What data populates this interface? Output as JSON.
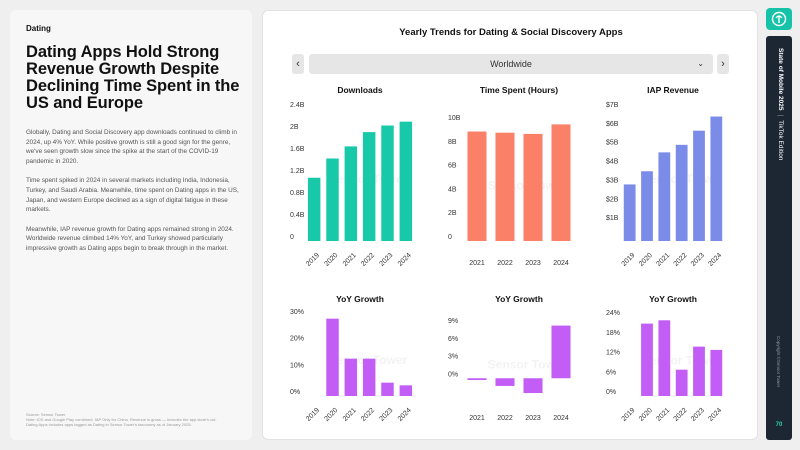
{
  "left": {
    "section_tag": "Dating",
    "headline": "Dating Apps Hold Strong Revenue Growth Despite Declining Time Spent in the US and Europe",
    "paragraphs": [
      "Globally, Dating and Social Discovery app downloads continued to climb in 2024, up 4% YoY. While positive growth is still a good sign for the genre, we've seen growth slow since the spike at the start of the COVID-19 pandemic in 2020.",
      "Time spent spiked in 2024 in several markets including India, Indonesia, Turkey, and Saudi Arabia. Meanwhile, time spent on Dating apps in the US, Japan, and western Europe declined as a sign of digital fatigue in these markets.",
      "Meanwhile, IAP revenue growth for Dating apps remained strong in 2024. Worldwide revenue climbed 14% YoY, and Turkey showed particularly impressive growth as Dating apps begin to break through in the market."
    ],
    "footnote": [
      "Source: Sensor Tower",
      "Note: iOS and Google Play combined. IAP Only for China. Revenue is gross — includes the app store's cut.",
      "Dating Apps includes apps tagged as Dating in Sensor Tower's taxonomy as of January 2025."
    ]
  },
  "right": {
    "title": "Yearly Trends for Dating & Social Discovery Apps",
    "region": "Worldwide",
    "prev_glyph": "‹",
    "next_glyph": "›",
    "chevron_glyph": "⌄"
  },
  "sidebar": {
    "title_bold": "State of Mobile 2025",
    "divider": "|",
    "edition": "TikTok Edition",
    "copyright": "Copyright ©Sensor Tower",
    "page": "70"
  },
  "watermark": "Sensor Tower",
  "colors": {
    "downloads": "#17c9a8",
    "time_spent": "#fb8068",
    "revenue": "#7b8ce8",
    "growth": "#c25ef5",
    "axis_text": "#333333"
  },
  "chart_data": [
    {
      "id": "downloads",
      "type": "bar",
      "title": "Downloads",
      "categories": [
        "2019",
        "2020",
        "2021",
        "2022",
        "2023",
        "2024"
      ],
      "values": [
        1.15,
        1.5,
        1.72,
        1.98,
        2.1,
        2.17
      ],
      "ylim": [
        0,
        2.4
      ],
      "yticks": [
        0,
        0.4,
        0.8,
        1.2,
        1.6,
        2.0,
        2.4
      ],
      "ytick_labels": [
        "0",
        "0.4B",
        "0.8B",
        "1.2B",
        "1.6B",
        "2B",
        "2.4B"
      ],
      "rotate_x": true
    },
    {
      "id": "time_spent",
      "type": "bar",
      "title": "Time Spent (Hours)",
      "categories": [
        "2021",
        "2022",
        "2023",
        "2024"
      ],
      "values": [
        9.2,
        9.1,
        9.0,
        9.8
      ],
      "ylim": [
        0,
        10
      ],
      "yticks": [
        0,
        2,
        4,
        6,
        8,
        10
      ],
      "ytick_labels": [
        "0",
        "2B",
        "4B",
        "6B",
        "8B",
        "10B"
      ],
      "rotate_x": false
    },
    {
      "id": "revenue",
      "type": "bar",
      "title": "IAP Revenue",
      "categories": [
        "2019",
        "2020",
        "2021",
        "2022",
        "2023",
        "2024"
      ],
      "values": [
        3.0,
        3.7,
        4.7,
        5.1,
        5.85,
        6.6
      ],
      "ylim": [
        0,
        7
      ],
      "yticks": [
        1,
        2,
        3,
        4,
        5,
        6,
        7
      ],
      "ytick_labels": [
        "$1B",
        "$2B",
        "$3B",
        "$4B",
        "$5B",
        "$6B",
        "$7B"
      ],
      "rotate_x": true
    },
    {
      "id": "downloads_yoy",
      "type": "bar",
      "title": "YoY Growth",
      "categories": [
        "2019",
        "2020",
        "2021",
        "2022",
        "2023",
        "2024"
      ],
      "values": [
        null,
        29,
        14,
        14,
        5,
        4
      ],
      "ylim": [
        0,
        30
      ],
      "yticks": [
        0,
        10,
        20,
        30
      ],
      "ytick_labels": [
        "0%",
        "10%",
        "20%",
        "30%"
      ],
      "rotate_x": true
    },
    {
      "id": "time_spent_yoy",
      "type": "bar",
      "title": "YoY Growth",
      "categories": [
        "2021",
        "2022",
        "2023",
        "2024"
      ],
      "values": [
        -0.3,
        -1.3,
        -2.5,
        8.9
      ],
      "ylim": [
        -3,
        9
      ],
      "yticks": [
        0,
        3,
        6,
        9
      ],
      "ytick_labels": [
        "0%",
        "3%",
        "6%",
        "9%"
      ],
      "rotate_x": false
    },
    {
      "id": "revenue_yoy",
      "type": "bar",
      "title": "YoY Growth",
      "categories": [
        "2019",
        "2020",
        "2021",
        "2022",
        "2023",
        "2024"
      ],
      "values": [
        null,
        22,
        23,
        8,
        15,
        14
      ],
      "ylim": [
        0,
        24
      ],
      "yticks": [
        0,
        6,
        12,
        18,
        24
      ],
      "ytick_labels": [
        "0%",
        "6%",
        "12%",
        "18%",
        "24%"
      ],
      "rotate_x": true
    }
  ]
}
